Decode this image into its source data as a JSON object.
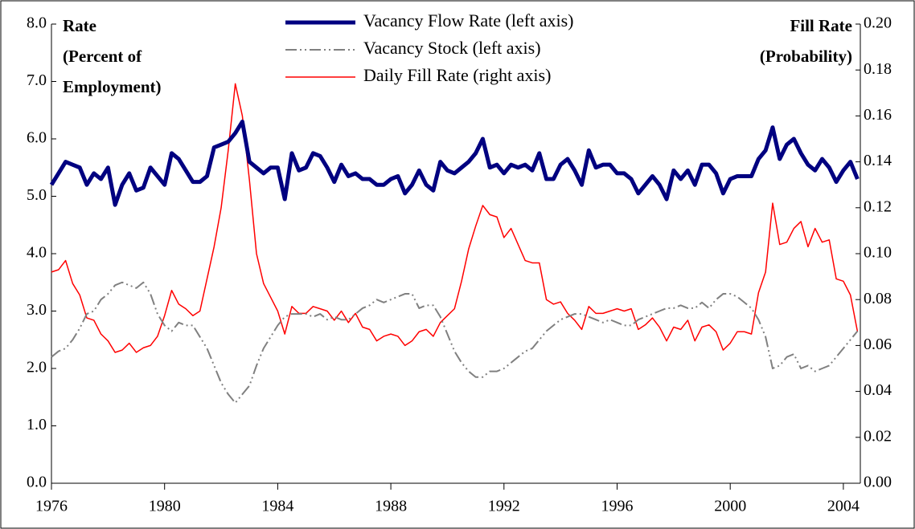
{
  "chart_data": {
    "type": "line",
    "y_label": [
      "Rate",
      "(Percent of",
      "Employment)"
    ],
    "y2_label": [
      "Fill Rate",
      "(Probability)"
    ],
    "x": [
      1976,
      1976.25,
      1976.5,
      1976.75,
      1977,
      1977.25,
      1977.5,
      1977.75,
      1978,
      1978.25,
      1978.5,
      1978.75,
      1979,
      1979.25,
      1979.5,
      1979.75,
      1980,
      1980.25,
      1980.5,
      1980.75,
      1981,
      1981.25,
      1981.5,
      1981.75,
      1982,
      1982.25,
      1982.5,
      1982.75,
      1983,
      1983.25,
      1983.5,
      1983.75,
      1984,
      1984.25,
      1984.5,
      1984.75,
      1985,
      1985.25,
      1985.5,
      1985.75,
      1986,
      1986.25,
      1986.5,
      1986.75,
      1987,
      1987.25,
      1987.5,
      1987.75,
      1988,
      1988.25,
      1988.5,
      1988.75,
      1989,
      1989.25,
      1989.5,
      1989.75,
      1990,
      1990.25,
      1990.5,
      1990.75,
      1991,
      1991.25,
      1991.5,
      1991.75,
      1992,
      1992.25,
      1992.5,
      1992.75,
      1993,
      1993.25,
      1993.5,
      1993.75,
      1994,
      1994.25,
      1994.5,
      1994.75,
      1995,
      1995.25,
      1995.5,
      1995.75,
      1996,
      1996.25,
      1996.5,
      1996.75,
      1997,
      1997.25,
      1997.5,
      1997.75,
      1998,
      1998.25,
      1998.5,
      1998.75,
      1999,
      1999.25,
      1999.5,
      1999.75,
      2000,
      2000.25,
      2000.5,
      2000.75,
      2001,
      2001.25,
      2001.5,
      2001.75,
      2002,
      2002.25,
      2002.5,
      2002.75,
      2003,
      2003.25,
      2003.5,
      2003.75,
      2004,
      2004.25,
      2004.5
    ],
    "series": [
      {
        "name": "Vacancy Flow Rate (left axis)",
        "color": "#000080",
        "style": "solid",
        "width": 5,
        "values": [
          5.2,
          5.4,
          5.6,
          5.55,
          5.5,
          5.2,
          5.4,
          5.3,
          5.5,
          4.85,
          5.2,
          5.4,
          5.1,
          5.15,
          5.5,
          5.35,
          5.2,
          5.75,
          5.65,
          5.45,
          5.25,
          5.25,
          5.35,
          5.85,
          5.9,
          5.95,
          6.1,
          6.3,
          5.6,
          5.5,
          5.4,
          5.5,
          5.5,
          4.95,
          5.75,
          5.45,
          5.5,
          5.75,
          5.7,
          5.5,
          5.25,
          5.55,
          5.35,
          5.4,
          5.3,
          5.3,
          5.2,
          5.2,
          5.3,
          5.35,
          5.05,
          5.2,
          5.45,
          5.2,
          5.1,
          5.6,
          5.45,
          5.4,
          5.5,
          5.6,
          5.75,
          6.0,
          5.5,
          5.55,
          5.4,
          5.55,
          5.5,
          5.55,
          5.45,
          5.75,
          5.3,
          5.3,
          5.55,
          5.65,
          5.45,
          5.2,
          5.8,
          5.5,
          5.55,
          5.55,
          5.4,
          5.4,
          5.3,
          5.05,
          5.2,
          5.35,
          5.2,
          4.95,
          5.45,
          5.3,
          5.45,
          5.2,
          5.55,
          5.55,
          5.4,
          5.05,
          5.3,
          5.35,
          5.35,
          5.35,
          5.65,
          5.8,
          6.2,
          5.65,
          5.9,
          6.0,
          5.75,
          5.55,
          5.45,
          5.65,
          5.5,
          5.25,
          5.45,
          5.6,
          5.3
        ]
      },
      {
        "name": "Vacancy Stock (left axis)",
        "color": "#808080",
        "style": "dashdot",
        "width": 2,
        "values": [
          2.2,
          2.3,
          2.35,
          2.5,
          2.7,
          2.95,
          3.0,
          3.2,
          3.3,
          3.45,
          3.5,
          3.45,
          3.4,
          3.5,
          3.3,
          2.95,
          2.75,
          2.65,
          2.8,
          2.75,
          2.75,
          2.55,
          2.35,
          2.05,
          1.75,
          1.55,
          1.4,
          1.55,
          1.7,
          2.05,
          2.35,
          2.55,
          2.75,
          2.9,
          2.95,
          2.95,
          2.95,
          2.9,
          2.95,
          2.85,
          2.9,
          2.85,
          2.85,
          2.95,
          3.05,
          3.1,
          3.2,
          3.15,
          3.2,
          3.25,
          3.3,
          3.3,
          3.05,
          3.1,
          3.1,
          2.9,
          2.6,
          2.3,
          2.1,
          1.95,
          1.85,
          1.85,
          1.95,
          1.95,
          2.0,
          2.1,
          2.2,
          2.3,
          2.35,
          2.5,
          2.65,
          2.75,
          2.85,
          2.9,
          2.95,
          2.95,
          2.9,
          2.85,
          2.8,
          2.85,
          2.8,
          2.75,
          2.75,
          2.85,
          2.9,
          2.95,
          3.0,
          3.05,
          3.05,
          3.1,
          3.05,
          3.05,
          3.15,
          3.05,
          3.2,
          3.3,
          3.3,
          3.25,
          3.15,
          3.05,
          2.85,
          2.55,
          2.0,
          2.05,
          2.2,
          2.25,
          2.0,
          2.05,
          1.95,
          2.0,
          2.05,
          2.2,
          2.35,
          2.5,
          2.65
        ]
      },
      {
        "name": "Daily Fill Rate (right axis)",
        "color": "#ff0000",
        "style": "solid",
        "width": 1.5,
        "axis": "y2",
        "values": [
          0.092,
          0.093,
          0.097,
          0.087,
          0.082,
          0.072,
          0.071,
          0.065,
          0.062,
          0.057,
          0.058,
          0.061,
          0.057,
          0.059,
          0.06,
          0.064,
          0.073,
          0.084,
          0.078,
          0.076,
          0.073,
          0.075,
          0.089,
          0.103,
          0.12,
          0.145,
          0.174,
          0.16,
          0.132,
          0.1,
          0.087,
          0.081,
          0.075,
          0.065,
          0.077,
          0.074,
          0.074,
          0.077,
          0.076,
          0.075,
          0.071,
          0.075,
          0.07,
          0.074,
          0.068,
          0.067,
          0.062,
          0.064,
          0.065,
          0.064,
          0.06,
          0.062,
          0.066,
          0.067,
          0.064,
          0.07,
          0.073,
          0.076,
          0.088,
          0.102,
          0.112,
          0.121,
          0.117,
          0.116,
          0.107,
          0.111,
          0.104,
          0.097,
          0.096,
          0.096,
          0.08,
          0.078,
          0.079,
          0.074,
          0.071,
          0.067,
          0.077,
          0.074,
          0.074,
          0.075,
          0.076,
          0.075,
          0.076,
          0.067,
          0.069,
          0.072,
          0.068,
          0.062,
          0.068,
          0.067,
          0.071,
          0.062,
          0.068,
          0.069,
          0.066,
          0.058,
          0.061,
          0.066,
          0.066,
          0.065,
          0.083,
          0.092,
          0.122,
          0.104,
          0.105,
          0.111,
          0.114,
          0.103,
          0.111,
          0.105,
          0.106,
          0.089,
          0.088,
          0.082,
          0.066
        ]
      }
    ],
    "xlim": [
      1976,
      2004.6
    ],
    "xticks": [
      1976,
      1980,
      1984,
      1988,
      1992,
      1996,
      2000,
      2004
    ],
    "ylim": [
      0,
      8
    ],
    "yticks": [
      {
        "value": 0,
        "label": "0.0"
      },
      {
        "value": 1,
        "label": "1.0"
      },
      {
        "value": 2,
        "label": "2.0"
      },
      {
        "value": 3,
        "label": "3.0"
      },
      {
        "value": 4,
        "label": "4.0"
      },
      {
        "value": 5,
        "label": "5.0"
      },
      {
        "value": 6,
        "label": "6.0"
      },
      {
        "value": 7,
        "label": "7.0"
      },
      {
        "value": 8,
        "label": "8.0"
      }
    ],
    "y2lim": [
      0,
      0.2
    ],
    "y2ticks": [
      {
        "value": 0,
        "label": "0.00"
      },
      {
        "value": 0.02,
        "label": "0.02"
      },
      {
        "value": 0.04,
        "label": "0.04"
      },
      {
        "value": 0.06,
        "label": "0.06"
      },
      {
        "value": 0.08,
        "label": "0.08"
      },
      {
        "value": 0.1,
        "label": "0.10"
      },
      {
        "value": 0.12,
        "label": "0.12"
      },
      {
        "value": 0.14,
        "label": "0.14"
      },
      {
        "value": 0.16,
        "label": "0.16"
      },
      {
        "value": 0.18,
        "label": "0.18"
      },
      {
        "value": 0.2,
        "label": "0.20"
      }
    ],
    "grid": false
  }
}
